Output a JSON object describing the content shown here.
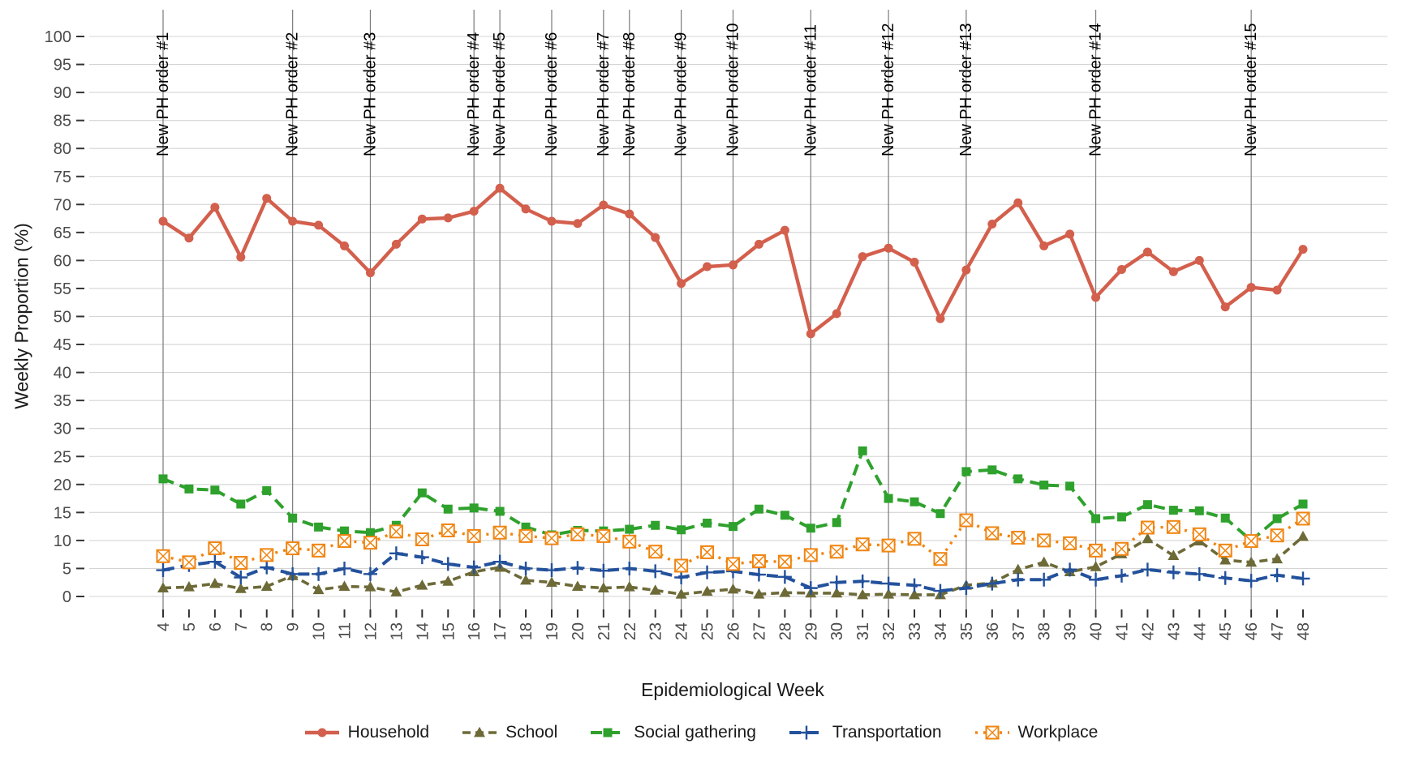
{
  "figure": {
    "background": "#ffffff"
  },
  "axes": {
    "y_tick_label_color": "#4a4a4a",
    "x_tick_label_color": "#4a4a4a",
    "grid_color": "#d4d4d4",
    "vline_color": "#7a7a7a",
    "tick_mark_color": "#333333"
  },
  "chart_data": {
    "type": "line",
    "title": "",
    "xlabel": "Epidemiological Week",
    "ylabel": "Weekly Proportion (%)",
    "x": [
      4,
      5,
      6,
      7,
      8,
      9,
      10,
      11,
      12,
      13,
      14,
      15,
      16,
      17,
      18,
      19,
      20,
      21,
      22,
      23,
      24,
      25,
      26,
      27,
      28,
      29,
      30,
      31,
      32,
      33,
      34,
      35,
      36,
      37,
      38,
      39,
      40,
      41,
      42,
      43,
      44,
      45,
      46,
      47,
      48
    ],
    "ylim": [
      0,
      100
    ],
    "ytick_step": 5,
    "grid": "horizontal-major",
    "legend_position": "bottom",
    "series": [
      {
        "name": "Household",
        "color": "#d35f4d",
        "marker": "circle",
        "dash": "solid",
        "values": [
          67.0,
          64.0,
          69.5,
          60.6,
          71.1,
          67.0,
          66.3,
          62.6,
          57.8,
          62.9,
          67.4,
          67.6,
          68.8,
          72.9,
          69.2,
          67.0,
          66.6,
          69.9,
          68.3,
          64.1,
          55.9,
          58.9,
          59.2,
          62.9,
          65.4,
          46.9,
          50.5,
          60.7,
          62.2,
          59.7,
          49.6,
          58.3,
          66.5,
          70.3,
          62.6,
          64.7,
          53.4,
          58.4,
          61.5,
          58.0,
          60.0,
          51.7,
          55.2,
          54.7,
          62.0
        ]
      },
      {
        "name": "School",
        "color": "#6d6a38",
        "marker": "triangle",
        "dash": "dashed",
        "values": [
          1.5,
          1.7,
          2.3,
          1.4,
          1.8,
          3.7,
          1.2,
          1.8,
          1.7,
          0.8,
          2.0,
          2.7,
          4.4,
          5.2,
          2.9,
          2.5,
          1.8,
          1.5,
          1.7,
          1.1,
          0.4,
          0.9,
          1.3,
          0.4,
          0.7,
          0.6,
          0.6,
          0.3,
          0.4,
          0.3,
          0.3,
          2.0,
          2.4,
          4.8,
          6.1,
          4.4,
          5.3,
          7.6,
          10.3,
          7.3,
          9.9,
          6.5,
          6.1,
          6.7,
          10.7
        ]
      },
      {
        "name": "Social gathering",
        "color": "#2fa12d",
        "marker": "square",
        "dash": "long-dash",
        "values": [
          21.0,
          19.2,
          19.0,
          16.5,
          18.9,
          14.0,
          12.4,
          11.7,
          11.4,
          12.7,
          18.5,
          15.6,
          15.8,
          15.2,
          12.4,
          11.0,
          11.8,
          11.7,
          12.0,
          12.7,
          11.9,
          13.1,
          12.5,
          15.6,
          14.5,
          12.2,
          13.2,
          26.0,
          17.5,
          16.9,
          14.8,
          22.3,
          22.6,
          21.0,
          19.9,
          19.7,
          13.9,
          14.2,
          16.4,
          15.4,
          15.3,
          14.0,
          10.0,
          13.9,
          16.5
        ]
      },
      {
        "name": "Transportation",
        "color": "#23519c",
        "marker": "plus",
        "dash": "long-dash",
        "values": [
          4.7,
          5.6,
          6.2,
          3.4,
          5.2,
          4.0,
          4.0,
          5.0,
          4.0,
          7.7,
          7.0,
          5.8,
          5.2,
          6.2,
          5.0,
          4.7,
          5.1,
          4.6,
          5.0,
          4.5,
          3.4,
          4.3,
          4.5,
          3.9,
          3.5,
          1.5,
          2.5,
          2.7,
          2.3,
          2.0,
          1.0,
          1.5,
          2.3,
          3.0,
          3.0,
          4.8,
          3.0,
          3.7,
          4.8,
          4.3,
          4.0,
          3.3,
          2.8,
          3.8,
          3.2
        ]
      },
      {
        "name": "Workplace",
        "color": "#f08511",
        "marker": "crossed-square",
        "dash": "dotted",
        "values": [
          7.2,
          6.1,
          8.6,
          6.0,
          7.4,
          8.6,
          8.2,
          9.9,
          9.6,
          11.6,
          10.2,
          11.8,
          10.8,
          11.4,
          10.8,
          10.4,
          11.1,
          10.8,
          9.8,
          8.0,
          5.5,
          7.9,
          5.8,
          6.3,
          6.2,
          7.4,
          8.0,
          9.3,
          9.1,
          10.3,
          6.7,
          13.6,
          11.3,
          10.5,
          10.0,
          9.5,
          8.2,
          8.5,
          12.3,
          12.4,
          11.1,
          8.2,
          9.9,
          10.9,
          13.9
        ]
      }
    ],
    "annotations": {
      "vlines": [
        {
          "week": 4,
          "label": "New PH order #1"
        },
        {
          "week": 9,
          "label": "New PH order #2"
        },
        {
          "week": 12,
          "label": "New PH order #3"
        },
        {
          "week": 16,
          "label": "New PH order #4"
        },
        {
          "week": 17,
          "label": "New PH order #5"
        },
        {
          "week": 19,
          "label": "New PH order #6"
        },
        {
          "week": 21,
          "label": "New PH order #7"
        },
        {
          "week": 22,
          "label": "New PH order #8"
        },
        {
          "week": 24,
          "label": "New PH order #9"
        },
        {
          "week": 26,
          "label": "New PH order #10"
        },
        {
          "week": 29,
          "label": "New PH order #11"
        },
        {
          "week": 32,
          "label": "New PH order #12"
        },
        {
          "week": 35,
          "label": "New PH order #13"
        },
        {
          "week": 40,
          "label": "New PH order #14"
        },
        {
          "week": 46,
          "label": "New PH order #15"
        }
      ]
    }
  }
}
